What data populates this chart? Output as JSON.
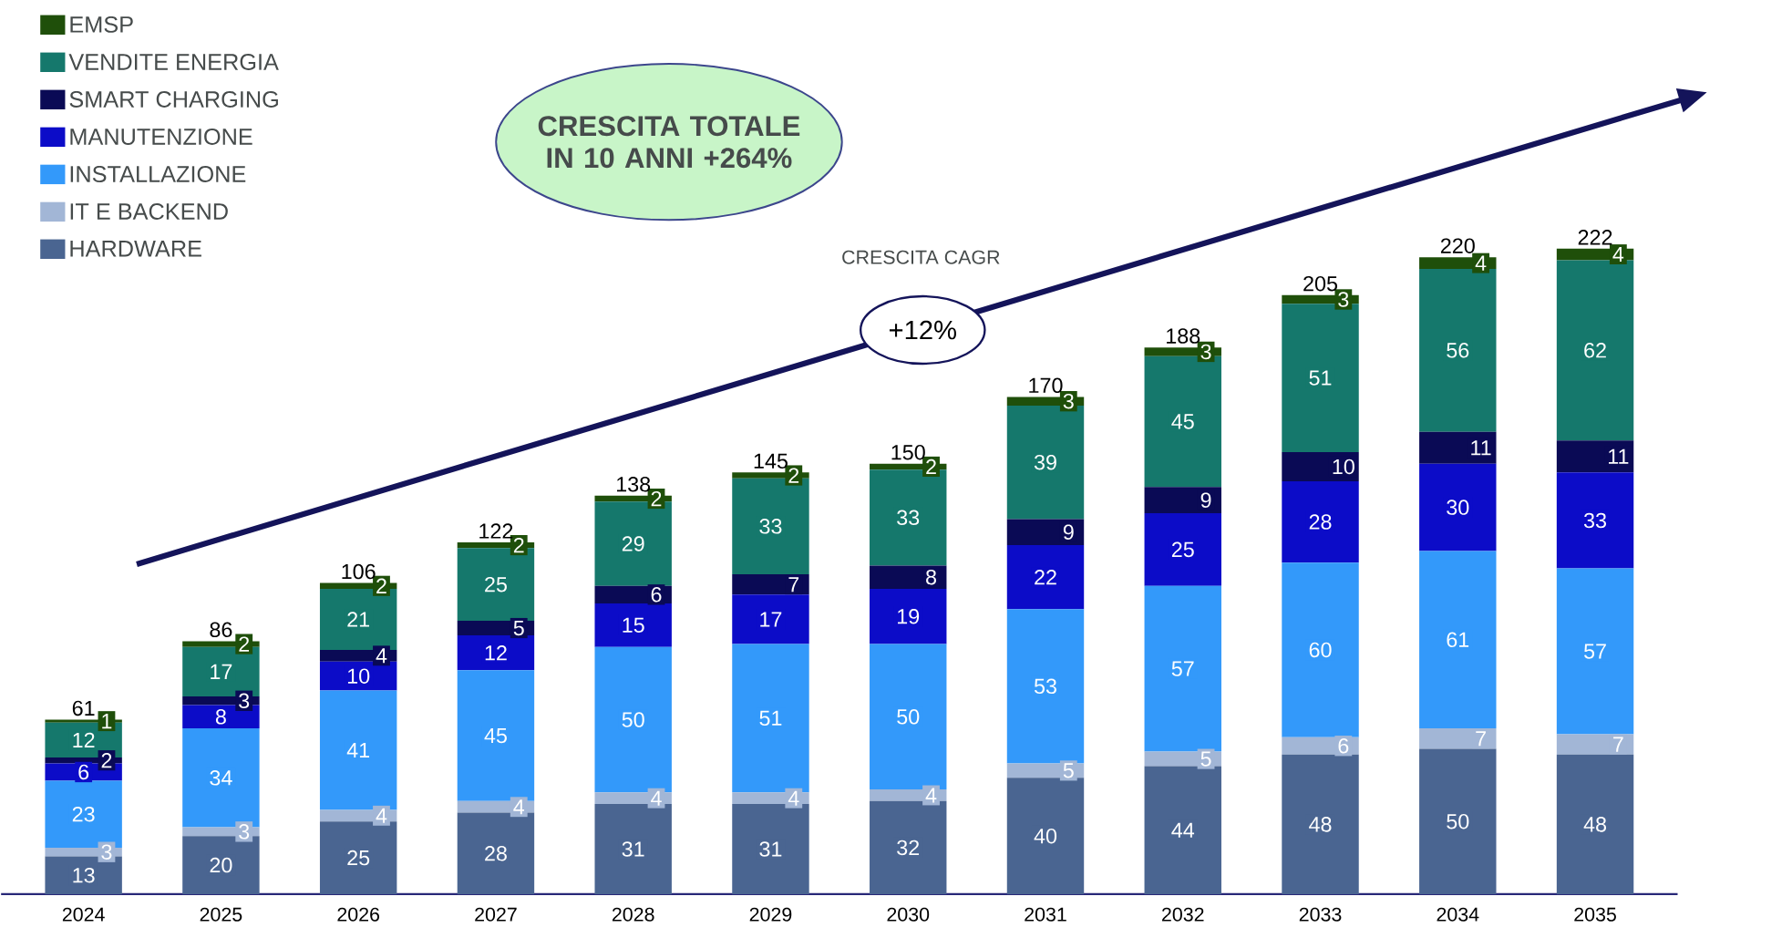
{
  "chart_data": {
    "type": "bar",
    "stacked": true,
    "data_labels": true,
    "legend": "top left",
    "categories": [
      "2024",
      "2025",
      "2026",
      "2027",
      "2028",
      "2029",
      "2030",
      "2031",
      "2032",
      "2033",
      "2034",
      "2035"
    ],
    "series": [
      {
        "name": "HARDWARE",
        "color": "#4a6591",
        "values": [
          13,
          20,
          25,
          28,
          31,
          31,
          32,
          40,
          44,
          48,
          50,
          48
        ]
      },
      {
        "name": "IT E BACKEND",
        "color": "#a2b6d6",
        "values": [
          3,
          3,
          4,
          4,
          4,
          4,
          4,
          5,
          5,
          6,
          7,
          7
        ]
      },
      {
        "name": "INSTALLAZIONE",
        "color": "#3399fa",
        "values": [
          23,
          34,
          41,
          45,
          50,
          51,
          50,
          53,
          57,
          60,
          61,
          57
        ]
      },
      {
        "name": "MANUTENZIONE",
        "color": "#0c0cc8",
        "values": [
          6,
          8,
          10,
          12,
          15,
          17,
          19,
          22,
          25,
          28,
          30,
          33
        ]
      },
      {
        "name": "SMART CHARGING",
        "color": "#0a0a55",
        "values": [
          2,
          3,
          4,
          5,
          6,
          7,
          8,
          9,
          9,
          10,
          11,
          11
        ]
      },
      {
        "name": "VENDITE ENERGIA",
        "color": "#15786c",
        "values": [
          12,
          17,
          21,
          25,
          29,
          33,
          33,
          39,
          45,
          51,
          56,
          62
        ]
      },
      {
        "name": "EMSP",
        "color": "#1f4f0a",
        "values": [
          1,
          2,
          2,
          2,
          2,
          2,
          2,
          3,
          3,
          3,
          4,
          4
        ]
      }
    ],
    "totals": [
      "61",
      "86",
      "106",
      "122",
      "138",
      "145",
      "150",
      "170",
      "188",
      "205",
      "220",
      "222"
    ],
    "annotations": [
      "CRESCITA TOTALE IN 10 ANNI +264%",
      "CRESCITA CAGR",
      "+12%"
    ]
  }
}
